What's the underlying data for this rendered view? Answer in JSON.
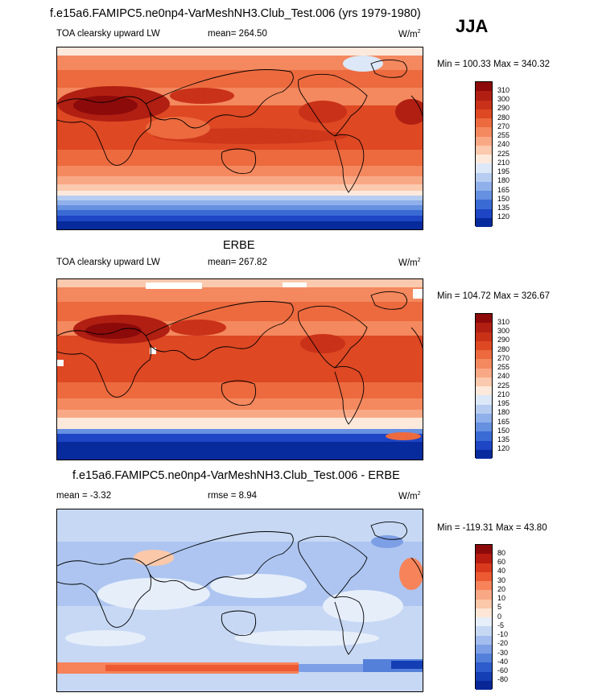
{
  "header": {
    "title": "f.e15a6.FAMIPC5.ne0np4-VarMeshNH3.Club_Test.006 (yrs 1979-1980)",
    "season": "JJA"
  },
  "panel1": {
    "label_left": "TOA clearsky upward LW",
    "label_mid": "mean= 264.50",
    "units": "W/m",
    "units_sup": "2",
    "minmax": "Min = 100.33 Max = 340.32"
  },
  "panel2": {
    "title": "ERBE",
    "label_left": "TOA clearsky upward LW",
    "label_mid": "mean= 267.82",
    "units": "W/m",
    "units_sup": "2",
    "minmax": "Min = 104.72 Max = 326.67"
  },
  "panel3": {
    "title": "f.e15a6.FAMIPC5.ne0np4-VarMeshNH3.Club_Test.006 - ERBE",
    "label_left": "mean =  -3.32",
    "label_mid": "rmse =   8.94",
    "units": "W/m",
    "units_sup": "2",
    "minmax": "Min = -119.31 Max =  43.80"
  },
  "colorbar_flux": {
    "levels": [
      "310",
      "300",
      "290",
      "280",
      "270",
      "255",
      "240",
      "225",
      "210",
      "195",
      "180",
      "165",
      "150",
      "135",
      "120"
    ],
    "colors": [
      "#8c0a0a",
      "#b01f12",
      "#c93118",
      "#de4823",
      "#ec6a3e",
      "#f4885e",
      "#f9a886",
      "#fbc9ad",
      "#fde9dc",
      "#dce8f8",
      "#b6cdf1",
      "#8fb0ea",
      "#6690e0",
      "#3a6bd5",
      "#1d45c4",
      "#072a9c"
    ]
  },
  "colorbar_diff": {
    "levels": [
      "80",
      "60",
      "40",
      "30",
      "20",
      "10",
      "5",
      "0",
      "-5",
      "-10",
      "-20",
      "-30",
      "-40",
      "-60",
      "-80"
    ],
    "colors": [
      "#8c0a0a",
      "#b81c10",
      "#d93a1d",
      "#ec5a33",
      "#f6835a",
      "#f9a886",
      "#fbc8aa",
      "#fde6d6",
      "#e6eefa",
      "#c7d8f4",
      "#a3bdee",
      "#7d9fe5",
      "#5580da",
      "#2e5ccc",
      "#143eb4",
      "#082695"
    ]
  }
}
